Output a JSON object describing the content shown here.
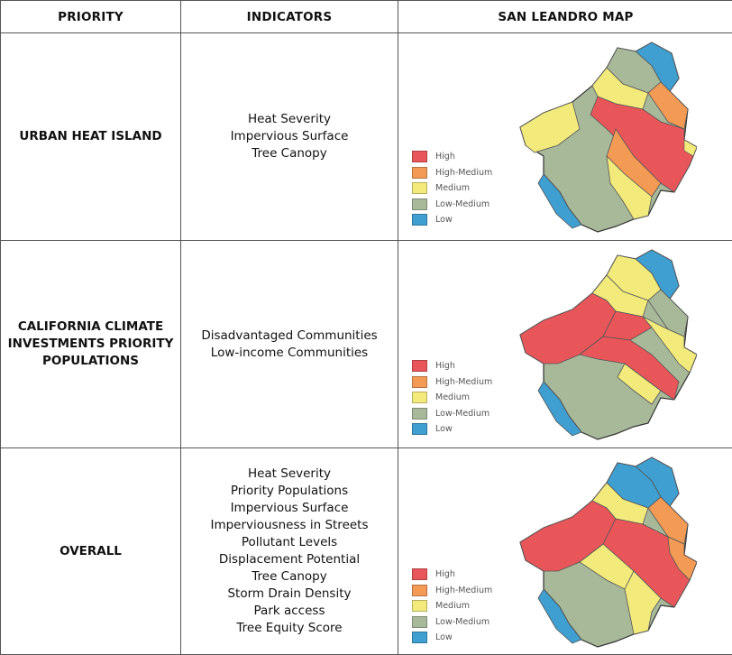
{
  "header": {
    "priority": "PRIORITY",
    "indicators": "INDICATORS",
    "map": "SAN LEANDRO MAP"
  },
  "legend_colors": {
    "high": "#e8565a",
    "high_medium": "#f39a55",
    "medium": "#f3ea7c",
    "low_medium": "#a8b99a",
    "low": "#3f9fd1"
  },
  "rows": [
    {
      "priority": "URBAN HEAT ISLAND",
      "indicators": [
        "Heat Severity",
        "Impervious Surface",
        "Tree Canopy"
      ],
      "legend": [
        "High",
        "High-Medium",
        "Medium",
        "Low-Medium",
        "Low"
      ]
    },
    {
      "priority": "CALIFORNIA CLIMATE INVESTMENTS PRIORITY POPULATIONS",
      "indicators": [
        "Disadvantaged Communities",
        "Low-income Communities"
      ],
      "legend": [
        "High",
        "High-Medium",
        "Medium",
        "Low-Medium",
        "Low"
      ]
    },
    {
      "priority": "OVERALL",
      "indicators": [
        "Heat Severity",
        "Priority Populations",
        "Impervious Surface",
        "Imperviousness in Streets",
        "Pollutant Levels",
        "Displacement Potential",
        "Tree Canopy",
        "Storm Drain Density",
        "Park access",
        "Tree Equity Score"
      ],
      "legend": [
        "High",
        "High-Medium",
        "Medium",
        "Low-Medium",
        "Low"
      ]
    }
  ]
}
